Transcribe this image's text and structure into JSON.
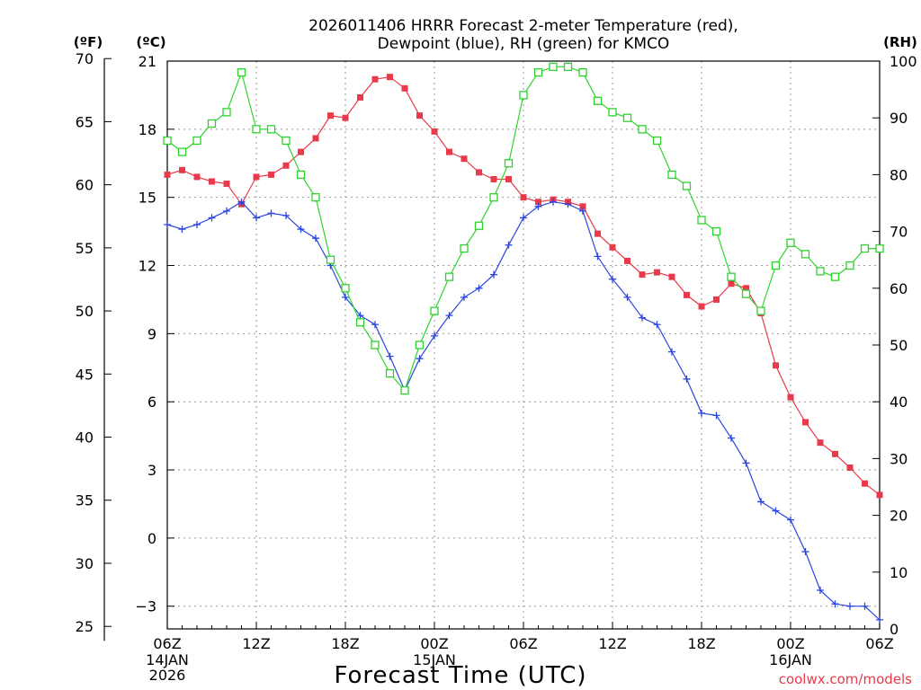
{
  "chart_data": {
    "type": "line",
    "title_line1": "2026011406 HRRR Forecast 2-meter Temperature (red),",
    "title_line2": "Dewpoint (blue), RH (green) for KMCO",
    "xlabel": "Forecast Time (UTC)",
    "credit": "coolwx.com/models",
    "unit_labels": {
      "fahrenheit": "(ºF)",
      "celsius": "(ºC)",
      "rh": "(RH)"
    },
    "x_range_hours": [
      0,
      48
    ],
    "celsius_range": [
      -4,
      21
    ],
    "rh_range": [
      0,
      100
    ],
    "celsius_ticks": [
      21,
      18,
      15,
      12,
      9,
      6,
      3,
      0,
      -3
    ],
    "celsius_tick_labels": [
      "21",
      "18",
      "15",
      "12",
      "9",
      "6",
      "3",
      "0",
      "−3"
    ],
    "fahrenheit_ticks": [
      70,
      65,
      60,
      55,
      50,
      45,
      40,
      35,
      30,
      25
    ],
    "fahrenheit_tick_labels": [
      "70",
      "65",
      "60",
      "55",
      "50",
      "45",
      "40",
      "35",
      "30",
      "25"
    ],
    "rh_ticks": [
      100,
      90,
      80,
      70,
      60,
      50,
      40,
      30,
      20,
      10,
      0
    ],
    "rh_tick_labels": [
      "100",
      "90",
      "80",
      "70",
      "60",
      "50",
      "40",
      "30",
      "20",
      "10",
      "0"
    ],
    "x_tick_hours": [
      0,
      6,
      12,
      18,
      24,
      30,
      36,
      42,
      48
    ],
    "x_tick_labels": [
      "06Z",
      "12Z",
      "18Z",
      "00Z",
      "06Z",
      "12Z",
      "18Z",
      "00Z",
      "06Z"
    ],
    "date_labels": [
      {
        "hour": 0,
        "line1": "14JAN",
        "line2": "2026"
      },
      {
        "hour": 18,
        "line1": "15JAN",
        "line2": ""
      },
      {
        "hour": 42,
        "line1": "16JAN",
        "line2": ""
      }
    ],
    "series": [
      {
        "name": "Temperature",
        "unit": "C",
        "color": "#e83a4a",
        "marker": "filled-square",
        "values": [
          16.0,
          16.2,
          15.9,
          15.7,
          15.6,
          14.7,
          15.9,
          16.0,
          16.4,
          17.0,
          17.6,
          18.6,
          18.5,
          19.4,
          20.2,
          20.3,
          19.8,
          18.6,
          17.9,
          17.0,
          16.7,
          16.1,
          15.8,
          15.8,
          15.0,
          14.8,
          14.9,
          14.8,
          14.6,
          13.4,
          12.8,
          12.2,
          11.6,
          11.7,
          11.5,
          10.7,
          10.2,
          10.5,
          11.2,
          11.0,
          9.9,
          7.6,
          6.2,
          5.1,
          4.2,
          3.7,
          3.1,
          2.4,
          1.9
        ]
      },
      {
        "name": "Dewpoint",
        "unit": "C",
        "color": "#2a46e0",
        "marker": "plus",
        "values": [
          13.8,
          13.6,
          13.8,
          14.1,
          14.4,
          14.8,
          14.1,
          14.3,
          14.2,
          13.6,
          13.2,
          12.0,
          10.6,
          9.8,
          9.4,
          8.0,
          6.5,
          7.9,
          8.9,
          9.8,
          10.6,
          11.0,
          11.6,
          12.9,
          14.1,
          14.6,
          14.8,
          14.7,
          14.4,
          12.4,
          11.4,
          10.6,
          9.7,
          9.4,
          8.2,
          7.0,
          5.5,
          5.4,
          4.4,
          3.3,
          1.6,
          1.2,
          0.8,
          -0.6,
          -2.3,
          -2.9,
          -3.0,
          -3.0,
          -3.6
        ]
      },
      {
        "name": "RH",
        "unit": "%",
        "color": "#2ed42e",
        "marker": "open-square",
        "values": [
          86,
          84,
          86,
          89,
          91,
          98,
          88,
          88,
          86,
          80,
          76,
          65,
          60,
          54,
          50,
          45,
          42,
          50,
          56,
          62,
          67,
          71,
          76,
          82,
          94,
          98,
          99,
          99,
          98,
          93,
          91,
          90,
          88,
          86,
          80,
          78,
          72,
          70,
          62,
          59,
          56,
          64,
          68,
          66,
          63,
          62,
          64,
          67,
          67
        ]
      }
    ]
  }
}
